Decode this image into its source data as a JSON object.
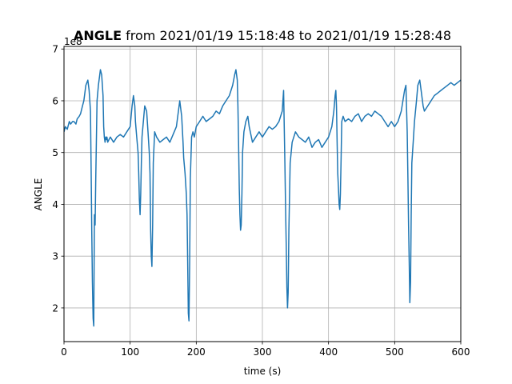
{
  "chart_data": {
    "type": "line",
    "title_bold": "ANGLE",
    "title_rest": " from 2021/01/19 15:18:48 to 2021/01/19 15:28:48",
    "xlabel": "time (s)",
    "ylabel": "ANGLE",
    "offset_label": "1e8",
    "xlim": [
      0,
      600
    ],
    "ylim": [
      1.35,
      7.05
    ],
    "y_scale_note": "values shown ×1e8",
    "xticks": [
      0,
      100,
      200,
      300,
      400,
      500,
      600
    ],
    "yticks": [
      2,
      3,
      4,
      5,
      6,
      7
    ],
    "grid": true,
    "color": "#1f77b4",
    "series": [
      {
        "x": [
          0,
          2,
          5,
          8,
          10,
          13,
          15,
          18,
          20,
          23,
          25,
          28,
          30,
          33,
          36,
          38,
          40,
          41,
          42,
          43,
          44,
          45,
          46,
          47,
          48,
          50,
          52,
          55,
          57,
          59,
          60,
          61,
          62,
          63,
          64,
          65,
          66,
          68,
          70,
          75,
          80,
          85,
          90,
          95,
          100,
          103,
          105,
          107,
          108,
          110,
          112,
          113,
          114,
          115,
          116,
          117,
          118,
          120,
          122,
          125,
          127,
          129,
          130,
          131,
          132,
          133,
          134,
          135,
          137,
          140,
          145,
          150,
          155,
          160,
          165,
          170,
          175,
          178,
          180,
          181,
          183,
          185,
          186,
          187,
          188,
          189,
          190,
          191,
          193,
          195,
          197,
          200,
          205,
          210,
          215,
          220,
          225,
          230,
          235,
          240,
          245,
          250,
          255,
          258,
          260,
          262,
          263,
          264,
          265,
          266,
          267,
          268,
          269,
          270,
          272,
          275,
          278,
          280,
          285,
          290,
          295,
          300,
          305,
          310,
          315,
          320,
          325,
          330,
          332,
          333,
          334,
          335,
          336,
          337,
          338,
          339,
          340,
          342,
          345,
          350,
          355,
          360,
          365,
          370,
          375,
          380,
          385,
          390,
          395,
          400,
          405,
          408,
          410,
          411,
          412,
          413,
          414,
          415,
          416,
          417,
          418,
          419,
          420,
          422,
          425,
          430,
          435,
          440,
          445,
          450,
          455,
          460,
          465,
          470,
          475,
          480,
          485,
          490,
          495,
          500,
          505,
          510,
          515,
          517,
          519,
          520,
          521,
          522,
          523,
          524,
          525,
          526,
          528,
          530,
          533,
          535,
          538,
          540,
          543,
          545,
          550,
          555,
          560,
          565,
          570,
          575,
          580,
          585,
          590,
          595,
          600
        ],
        "y": [
          5.4,
          5.5,
          5.45,
          5.6,
          5.55,
          5.6,
          5.6,
          5.55,
          5.65,
          5.7,
          5.75,
          5.9,
          6.0,
          6.3,
          6.4,
          6.2,
          5.8,
          4.7,
          3.5,
          2.5,
          1.8,
          1.65,
          3.8,
          3.6,
          4.5,
          6.0,
          6.3,
          6.6,
          6.5,
          6.1,
          5.5,
          5.3,
          5.2,
          5.3,
          5.25,
          5.3,
          5.2,
          5.25,
          5.3,
          5.2,
          5.3,
          5.35,
          5.3,
          5.4,
          5.5,
          5.9,
          6.1,
          5.9,
          5.6,
          5.3,
          5.0,
          4.6,
          4.1,
          3.8,
          4.2,
          4.8,
          5.3,
          5.6,
          5.9,
          5.8,
          5.4,
          5.0,
          4.6,
          3.5,
          3.0,
          2.8,
          3.6,
          4.8,
          5.4,
          5.3,
          5.2,
          5.25,
          5.3,
          5.2,
          5.35,
          5.5,
          6.0,
          5.7,
          5.2,
          4.9,
          4.6,
          4.2,
          3.8,
          2.9,
          1.9,
          1.75,
          2.9,
          4.5,
          5.3,
          5.4,
          5.3,
          5.5,
          5.6,
          5.7,
          5.6,
          5.65,
          5.7,
          5.8,
          5.75,
          5.9,
          6.0,
          6.1,
          6.3,
          6.5,
          6.6,
          6.4,
          5.9,
          5.2,
          4.3,
          3.8,
          3.5,
          3.6,
          4.2,
          5.0,
          5.4,
          5.6,
          5.7,
          5.5,
          5.2,
          5.3,
          5.4,
          5.3,
          5.4,
          5.5,
          5.45,
          5.5,
          5.6,
          5.8,
          6.2,
          5.5,
          4.8,
          4.0,
          3.2,
          2.4,
          2.0,
          2.3,
          3.5,
          4.8,
          5.2,
          5.4,
          5.3,
          5.25,
          5.2,
          5.3,
          5.1,
          5.2,
          5.25,
          5.1,
          5.2,
          5.3,
          5.5,
          5.8,
          6.1,
          6.2,
          5.9,
          5.2,
          4.6,
          4.3,
          4.0,
          3.9,
          4.2,
          4.9,
          5.6,
          5.7,
          5.6,
          5.65,
          5.6,
          5.7,
          5.75,
          5.6,
          5.7,
          5.75,
          5.7,
          5.8,
          5.75,
          5.7,
          5.6,
          5.5,
          5.6,
          5.5,
          5.6,
          5.8,
          6.2,
          6.3,
          5.4,
          4.5,
          3.6,
          2.9,
          2.1,
          2.5,
          3.8,
          4.8,
          5.2,
          5.6,
          6.0,
          6.3,
          6.4,
          6.2,
          5.9,
          5.8,
          5.9,
          6.0,
          6.1,
          6.15,
          6.2,
          6.25,
          6.3,
          6.35,
          6.3,
          6.35,
          6.4
        ]
      }
    ]
  }
}
